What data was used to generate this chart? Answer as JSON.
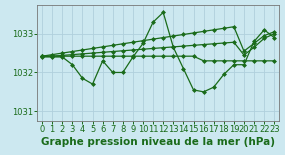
{
  "title": "Graphe pression niveau de la mer (hPa)",
  "background_color": "#cce8f0",
  "grid_color": "#b0d0dc",
  "line_color": "#1a6b1a",
  "xlim": [
    -0.5,
    23.5
  ],
  "ylim": [
    1030.75,
    1033.75
  ],
  "yticks": [
    1031,
    1032,
    1033
  ],
  "xticks": [
    0,
    1,
    2,
    3,
    4,
    5,
    6,
    7,
    8,
    9,
    10,
    11,
    12,
    13,
    14,
    15,
    16,
    17,
    18,
    19,
    20,
    21,
    22,
    23
  ],
  "line1_y": [
    1032.4,
    1032.4,
    1032.4,
    1032.2,
    1031.85,
    1031.7,
    1032.3,
    1032.0,
    1032.0,
    1032.4,
    1032.75,
    1033.3,
    1033.55,
    1032.65,
    1032.1,
    1031.55,
    1031.5,
    1031.62,
    1031.95,
    1032.2,
    1032.2,
    1032.8,
    1033.1,
    1032.9
  ],
  "line2_y": [
    1032.42,
    1032.42,
    1032.42,
    1032.42,
    1032.42,
    1032.42,
    1032.42,
    1032.42,
    1032.42,
    1032.42,
    1032.42,
    1032.42,
    1032.42,
    1032.42,
    1032.42,
    1032.42,
    1032.3,
    1032.3,
    1032.3,
    1032.3,
    1032.3,
    1032.3,
    1032.3,
    1032.3
  ],
  "line3_y": [
    1032.42,
    1032.46,
    1032.5,
    1032.54,
    1032.58,
    1032.62,
    1032.66,
    1032.7,
    1032.74,
    1032.78,
    1032.82,
    1032.86,
    1032.9,
    1032.94,
    1032.98,
    1033.02,
    1033.06,
    1033.1,
    1033.14,
    1033.18,
    1032.55,
    1032.75,
    1032.95,
    1033.05
  ],
  "line4_y": [
    1032.42,
    1032.42,
    1032.44,
    1032.46,
    1032.48,
    1032.5,
    1032.52,
    1032.54,
    1032.56,
    1032.58,
    1032.6,
    1032.62,
    1032.64,
    1032.66,
    1032.68,
    1032.7,
    1032.72,
    1032.74,
    1032.76,
    1032.78,
    1032.45,
    1032.65,
    1032.88,
    1033.0
  ],
  "marker": "D",
  "marker_size": 2.0,
  "linewidth": 0.9,
  "tick_fontsize": 6,
  "xlabel_fontsize": 7.5
}
